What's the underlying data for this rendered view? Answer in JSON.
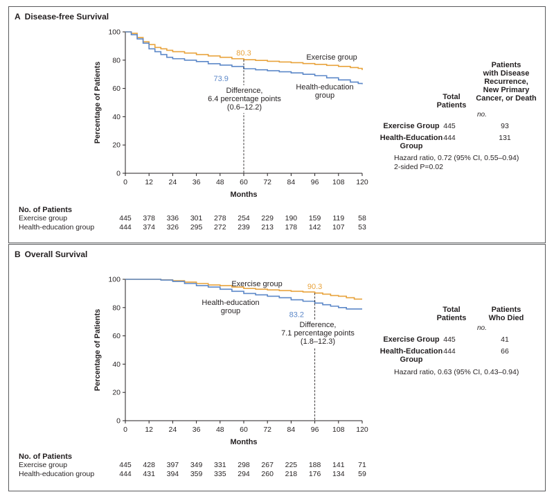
{
  "colors": {
    "exercise": "#e8a23a",
    "health_education": "#5b87c8",
    "axis": "#231f20",
    "border": "#58595b"
  },
  "chart_data": [
    {
      "panel_letter": "A",
      "title": "Disease-free Survival",
      "type": "line",
      "xlabel": "Months",
      "ylabel": "Percentage of Patients",
      "xlim": [
        0,
        120
      ],
      "ylim": [
        0,
        100
      ],
      "x_ticks": [
        0,
        12,
        24,
        36,
        48,
        60,
        72,
        84,
        96,
        108,
        120
      ],
      "y_ticks": [
        0,
        20,
        40,
        60,
        80,
        100
      ],
      "series": [
        {
          "name": "Exercise group",
          "color_key": "exercise",
          "x": [
            0,
            3,
            6,
            9,
            12,
            15,
            18,
            21,
            24,
            30,
            36,
            42,
            48,
            54,
            60,
            66,
            72,
            78,
            84,
            90,
            96,
            102,
            108,
            114,
            118,
            120
          ],
          "y": [
            100,
            99,
            96,
            93,
            91,
            89,
            88,
            87,
            86,
            85,
            84,
            83,
            82,
            81,
            80.3,
            79.8,
            79.2,
            78.7,
            78.2,
            77.6,
            77,
            76.3,
            75.6,
            74.8,
            74.2,
            73
          ]
        },
        {
          "name": "Health-education group",
          "color_key": "health_education",
          "x": [
            0,
            3,
            6,
            9,
            12,
            15,
            18,
            21,
            24,
            30,
            36,
            42,
            48,
            54,
            60,
            66,
            72,
            78,
            84,
            90,
            96,
            102,
            108,
            114,
            118,
            120
          ],
          "y": [
            100,
            98,
            95,
            92,
            88,
            86,
            84,
            82,
            81,
            80,
            79,
            77.5,
            76.5,
            75.5,
            73.9,
            73.2,
            72.5,
            71.8,
            71,
            70,
            69,
            67.5,
            66,
            64.5,
            63.5,
            63
          ]
        }
      ],
      "annotations": [
        {
          "text": "80.3",
          "color_key": "exercise"
        },
        {
          "text": "73.9",
          "color_key": "health_education"
        },
        {
          "text": "Exercise group"
        },
        {
          "text": "Health-education",
          "text2": "group"
        },
        {
          "text": "Difference,",
          "text2": "6.4 percentage points",
          "text3": "(0.6–12.2)"
        }
      ],
      "difference_at": 60,
      "risk_table": {
        "header": "No. of Patients",
        "rows": [
          {
            "label": "Exercise group",
            "values": [
              445,
              378,
              336,
              301,
              278,
              254,
              229,
              190,
              159,
              119,
              58
            ]
          },
          {
            "label": "Health-education group",
            "values": [
              444,
              374,
              326,
              295,
              272,
              239,
              213,
              178,
              142,
              107,
              53
            ]
          }
        ]
      },
      "summary": {
        "col1_header": [
          "Total",
          "Patients"
        ],
        "col2_header": [
          "Patients",
          "with Disease",
          "Recurrence,",
          "New Primary",
          "Cancer, or Death"
        ],
        "unit": "no.",
        "rows": [
          {
            "group": "Exercise Group",
            "group2": "",
            "total": "445",
            "events": "93"
          },
          {
            "group": "Health-Education",
            "group2": "Group",
            "total": "444",
            "events": "131"
          }
        ],
        "notes": [
          "Hazard ratio, 0.72 (95% CI, 0.55–0.94)",
          "2-sided P=0.02"
        ]
      }
    },
    {
      "panel_letter": "B",
      "title": "Overall Survival",
      "type": "line",
      "xlabel": "Months",
      "ylabel": "Percentage of Patients",
      "xlim": [
        0,
        120
      ],
      "ylim": [
        0,
        100
      ],
      "x_ticks": [
        0,
        12,
        24,
        36,
        48,
        60,
        72,
        84,
        96,
        108,
        120
      ],
      "y_ticks": [
        0,
        20,
        40,
        60,
        80,
        100
      ],
      "series": [
        {
          "name": "Exercise group",
          "color_key": "exercise",
          "x": [
            0,
            12,
            18,
            24,
            30,
            36,
            42,
            48,
            54,
            60,
            66,
            72,
            78,
            84,
            90,
            96,
            100,
            104,
            108,
            112,
            116,
            120
          ],
          "y": [
            100,
            100,
            99.6,
            99,
            98,
            97,
            96,
            95.5,
            94.5,
            93.5,
            93,
            92.5,
            92,
            91.5,
            91,
            90.3,
            89.5,
            88.5,
            88,
            87,
            86,
            86
          ]
        },
        {
          "name": "Health-education group",
          "color_key": "health_education",
          "x": [
            0,
            12,
            18,
            24,
            30,
            36,
            42,
            48,
            54,
            60,
            66,
            72,
            78,
            84,
            90,
            96,
            100,
            104,
            108,
            112,
            116,
            120
          ],
          "y": [
            100,
            100,
            99.5,
            98.5,
            97,
            95.5,
            94.5,
            93,
            91.5,
            90,
            89,
            88,
            87,
            85.5,
            84.5,
            83.2,
            82,
            81,
            80,
            79,
            79,
            79
          ]
        }
      ],
      "annotations": [
        {
          "text": "90.3",
          "color_key": "exercise"
        },
        {
          "text": "83.2",
          "color_key": "health_education"
        },
        {
          "text": "Exercise group"
        },
        {
          "text": "Health-education",
          "text2": "group"
        },
        {
          "text": "Difference,",
          "text2": "7.1 percentage points",
          "text3": "(1.8–12.3)"
        }
      ],
      "difference_at": 96,
      "risk_table": {
        "header": "No. of Patients",
        "rows": [
          {
            "label": "Exercise group",
            "values": [
              445,
              428,
              397,
              349,
              331,
              298,
              267,
              225,
              188,
              141,
              71
            ]
          },
          {
            "label": "Health-education group",
            "values": [
              444,
              431,
              394,
              359,
              335,
              294,
              260,
              218,
              176,
              134,
              59
            ]
          }
        ]
      },
      "summary": {
        "col1_header": [
          "Total",
          "Patients"
        ],
        "col2_header": [
          "Patients",
          "Who Died"
        ],
        "unit": "no.",
        "rows": [
          {
            "group": "Exercise Group",
            "group2": "",
            "total": "445",
            "events": "41"
          },
          {
            "group": "Health-Education",
            "group2": "Group",
            "total": "444",
            "events": "66"
          }
        ],
        "notes": [
          "Hazard ratio, 0.63 (95% CI, 0.43–0.94)"
        ]
      }
    }
  ]
}
